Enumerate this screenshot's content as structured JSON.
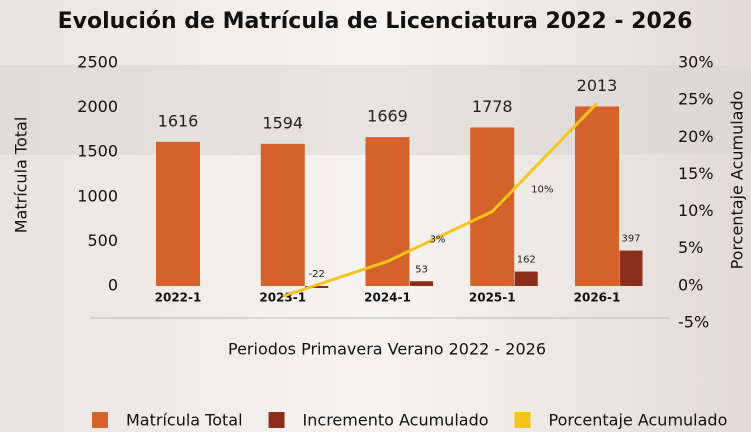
{
  "chart_data": {
    "type": "bar",
    "title": "Evolución de Matrícula de Licenciatura 2022 - 2026",
    "x_label": "Periodos Primavera Verano 2022 - 2026",
    "y_label": "Matrícula Total",
    "y2_label": "Porcentaje Acumulado",
    "categories": [
      "2022-1",
      "2023-1",
      "2024-1",
      "2025-1",
      "2026-1"
    ],
    "series": [
      {
        "name": "Matrícula Total",
        "color": "#d4622a",
        "values": [
          1616,
          1594,
          1669,
          1778,
          2013
        ]
      },
      {
        "name": "Incremento Acumulado",
        "color": "#8b2e1a",
        "values": [
          null,
          -22,
          53,
          162,
          397
        ]
      },
      {
        "name": "Porcentaje Acumulado",
        "color": "#f5c518",
        "type": "line",
        "axis": "y2",
        "values": [
          null,
          -1.4,
          3.3,
          10,
          24.6
        ],
        "value_labels": [
          null,
          null,
          "3%",
          "10%",
          null
        ]
      }
    ],
    "ylim": [
      0,
      2500
    ],
    "yticks": [
      0,
      500,
      1000,
      1500,
      2000,
      2500
    ],
    "y2lim": [
      -5,
      30
    ],
    "y2ticks": [
      {
        "value": -5,
        "label": "-5%"
      },
      {
        "value": 0,
        "label": "0%"
      },
      {
        "value": 5,
        "label": "5%"
      },
      {
        "value": 10,
        "label": "10%"
      },
      {
        "value": 15,
        "label": "15%"
      },
      {
        "value": 20,
        "label": "20%"
      },
      {
        "value": 25,
        "label": "25%"
      },
      {
        "value": 30,
        "label": "30%"
      }
    ],
    "legend": "bottom"
  }
}
